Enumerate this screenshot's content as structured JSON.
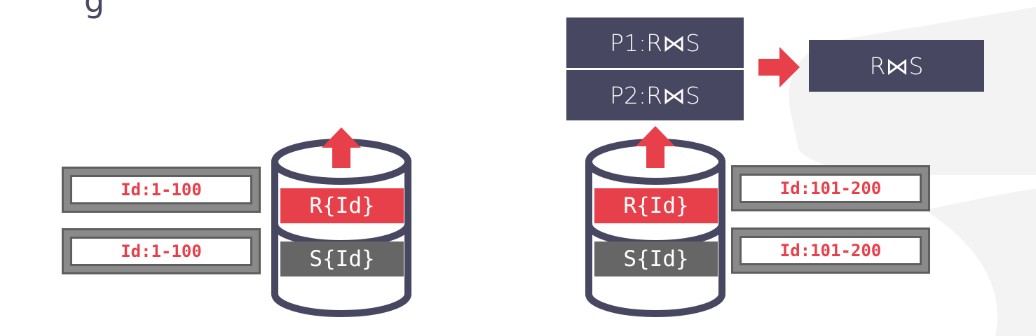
{
  "heading_fragment": "g",
  "left_node": {
    "tables": [
      {
        "label": "R{Id}",
        "color": "#e8404a"
      },
      {
        "label": "S{Id}",
        "color": "#666666"
      }
    ],
    "ranges": [
      "Id:1-100",
      "Id:1-100"
    ]
  },
  "right_node": {
    "tables": [
      {
        "label": "R{Id}",
        "color": "#e8404a"
      },
      {
        "label": "S{Id}",
        "color": "#666666"
      }
    ],
    "ranges": [
      "Id:101-200",
      "Id:101-200"
    ]
  },
  "partial_results": [
    "P1:R⋈S",
    "P2:R⋈S"
  ],
  "final_result": "R⋈S",
  "colors": {
    "accent": "#e8404a",
    "navy": "#474761",
    "gray": "#666666",
    "watermark": "#f2f2f2"
  }
}
